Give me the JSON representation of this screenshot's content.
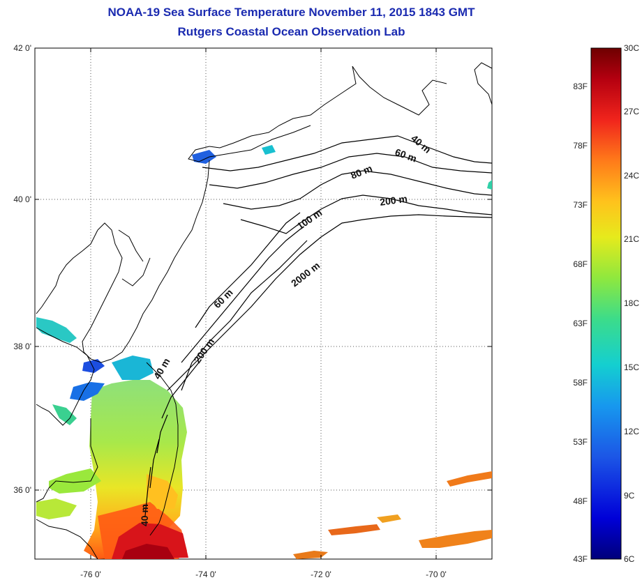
{
  "header": {
    "title": "NOAA-19 Sea Surface Temperature November 11, 2015 1843 GMT",
    "subtitle": "Rutgers Coastal Ocean Observation Lab"
  },
  "map": {
    "lat_labels": [
      "42 0'",
      "40 0'",
      "38 0'",
      "36 0'"
    ],
    "lon_labels": [
      "-76 0'",
      "-74 0'",
      "-72 0'",
      "-70 0'"
    ],
    "contour_labels": [
      "40 m",
      "60 m",
      "80 m",
      "200 m",
      "100 m",
      "2000 m",
      "60 m",
      "200 m",
      "40 m",
      "40 m"
    ]
  },
  "colorbar": {
    "celsius_labels": [
      "30C",
      "27C",
      "24C",
      "21C",
      "18C",
      "15C",
      "12C",
      "9C",
      "6C"
    ],
    "fahrenheit_labels": [
      "83F",
      "78F",
      "73F",
      "68F",
      "63F",
      "58F",
      "53F",
      "48F",
      "43F"
    ],
    "colors": [
      "#7a0000",
      "#c8001a",
      "#ff3a12",
      "#ff9a1e",
      "#f5e019",
      "#a8ef2a",
      "#4fe07a",
      "#18d2c8",
      "#1496ee",
      "#1a4fe0",
      "#1010c8",
      "#00007a"
    ]
  }
}
